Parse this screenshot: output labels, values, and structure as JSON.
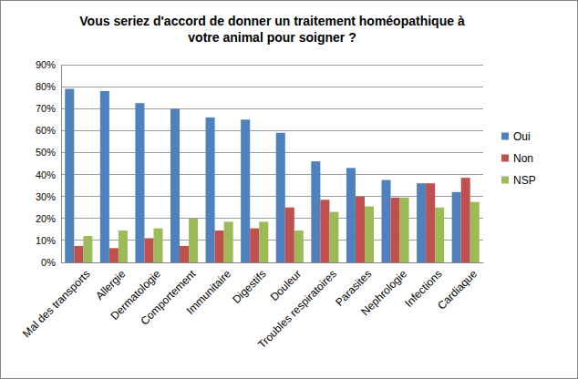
{
  "chart_data": {
    "type": "bar",
    "title": "Vous seriez d'accord de donner un traitement homéopathique à votre animal pour soigner ?",
    "categories": [
      "Mal des transports",
      "Allergie",
      "Dermatologie",
      "Comportement",
      "Immunitaire",
      "Digestifs",
      "Douleur",
      "Troubles respiratoires",
      "Parasites",
      "Nephrologie",
      "Infections",
      "Cardiaque"
    ],
    "series": [
      {
        "name": "Oui",
        "color": "#4f81bd",
        "values": [
          79,
          78,
          72.5,
          70,
          66,
          65,
          59,
          46,
          43,
          37.5,
          36,
          32
        ]
      },
      {
        "name": "Non",
        "color": "#c0504d",
        "values": [
          7.5,
          6.5,
          11,
          7.5,
          14.5,
          15.5,
          25,
          28.5,
          30,
          29.5,
          36,
          38.5
        ]
      },
      {
        "name": "NSP",
        "color": "#9bbb59",
        "values": [
          12,
          14.5,
          15.5,
          20,
          18.5,
          18.5,
          14.5,
          23,
          25.5,
          29.5,
          25,
          27.5
        ]
      }
    ],
    "ylim": [
      0,
      90
    ],
    "yticks": [
      {
        "value": 0,
        "label": "0%"
      },
      {
        "value": 10,
        "label": "10%"
      },
      {
        "value": 20,
        "label": "20%"
      },
      {
        "value": 30,
        "label": "30%"
      },
      {
        "value": 40,
        "label": "40%"
      },
      {
        "value": 50,
        "label": "50%"
      },
      {
        "value": 60,
        "label": "60%"
      },
      {
        "value": 70,
        "label": "70%"
      },
      {
        "value": 80,
        "label": "80%"
      },
      {
        "value": 90,
        "label": "90%"
      }
    ],
    "grid": true,
    "legend": "right"
  }
}
